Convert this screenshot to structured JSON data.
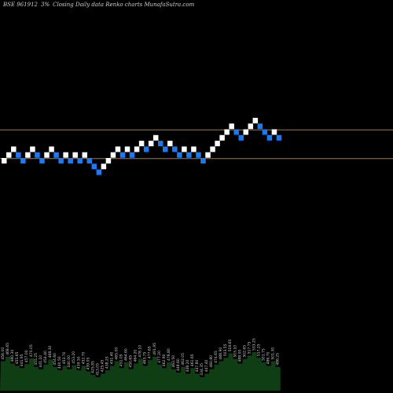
{
  "header": {
    "symbol": "BSE 961912",
    "box": "3%",
    "caption": "Closing Daily data Renko charts MunafaSutra.com"
  },
  "colors": {
    "up": "#ffffff",
    "down": "#1e78f0",
    "reference_line": "#b8742a",
    "volume": "#0f3d14",
    "background": "#000000"
  },
  "chart_data": {
    "type": "renko",
    "box_size_percent": 3,
    "reference_lines": [
      {
        "level": 5
      },
      {
        "level": 0
      }
    ],
    "bricks": [
      {
        "level": -1,
        "dir": "up"
      },
      {
        "level": 0,
        "dir": "up"
      },
      {
        "level": 1,
        "dir": "up"
      },
      {
        "level": 0,
        "dir": "down"
      },
      {
        "level": -1,
        "dir": "down"
      },
      {
        "level": 0,
        "dir": "up"
      },
      {
        "level": 1,
        "dir": "up"
      },
      {
        "level": 0,
        "dir": "down"
      },
      {
        "level": -1,
        "dir": "down"
      },
      {
        "level": 0,
        "dir": "up"
      },
      {
        "level": 1,
        "dir": "up"
      },
      {
        "level": 0,
        "dir": "down"
      },
      {
        "level": -1,
        "dir": "down"
      },
      {
        "level": 0,
        "dir": "up"
      },
      {
        "level": -1,
        "dir": "down"
      },
      {
        "level": 0,
        "dir": "up"
      },
      {
        "level": -1,
        "dir": "down"
      },
      {
        "level": 0,
        "dir": "up"
      },
      {
        "level": -1,
        "dir": "down"
      },
      {
        "level": -2,
        "dir": "down"
      },
      {
        "level": -3,
        "dir": "down"
      },
      {
        "level": -2,
        "dir": "up"
      },
      {
        "level": -1,
        "dir": "up"
      },
      {
        "level": 0,
        "dir": "up"
      },
      {
        "level": 1,
        "dir": "up"
      },
      {
        "level": 0,
        "dir": "down"
      },
      {
        "level": 1,
        "dir": "up"
      },
      {
        "level": 0,
        "dir": "down"
      },
      {
        "level": 1,
        "dir": "up"
      },
      {
        "level": 2,
        "dir": "up"
      },
      {
        "level": 1,
        "dir": "down"
      },
      {
        "level": 2,
        "dir": "up"
      },
      {
        "level": 3,
        "dir": "up"
      },
      {
        "level": 2,
        "dir": "down"
      },
      {
        "level": 1,
        "dir": "down"
      },
      {
        "level": 2,
        "dir": "up"
      },
      {
        "level": 1,
        "dir": "down"
      },
      {
        "level": 0,
        "dir": "down"
      },
      {
        "level": 1,
        "dir": "up"
      },
      {
        "level": 0,
        "dir": "down"
      },
      {
        "level": 1,
        "dir": "up"
      },
      {
        "level": 0,
        "dir": "down"
      },
      {
        "level": -1,
        "dir": "down"
      },
      {
        "level": 0,
        "dir": "up"
      },
      {
        "level": 1,
        "dir": "up"
      },
      {
        "level": 2,
        "dir": "up"
      },
      {
        "level": 3,
        "dir": "up"
      },
      {
        "level": 4,
        "dir": "up"
      },
      {
        "level": 5,
        "dir": "up"
      },
      {
        "level": 4,
        "dir": "down"
      },
      {
        "level": 3,
        "dir": "down"
      },
      {
        "level": 4,
        "dir": "up"
      },
      {
        "level": 5,
        "dir": "up"
      },
      {
        "level": 6,
        "dir": "up"
      },
      {
        "level": 5,
        "dir": "down"
      },
      {
        "level": 4,
        "dir": "down"
      },
      {
        "level": 3,
        "dir": "down"
      },
      {
        "level": 4,
        "dir": "up"
      },
      {
        "level": 3,
        "dir": "down"
      }
    ],
    "volume": [
      {
        "v": 52,
        "label": "456.00"
      },
      {
        "v": 60,
        "label": "468.65"
      },
      {
        "v": 48,
        "label": "480.30"
      },
      {
        "v": 44,
        "label": "455.65"
      },
      {
        "v": 40,
        "label": "441.95"
      },
      {
        "v": 47,
        "label": "457.00"
      },
      {
        "v": 57,
        "label": "470.05"
      },
      {
        "v": 42,
        "label": "455.25"
      },
      {
        "v": 38,
        "label": "441.10"
      },
      {
        "v": 46,
        "label": "454.40"
      },
      {
        "v": 55,
        "label": "468.30"
      },
      {
        "v": 42,
        "label": "454.60"
      },
      {
        "v": 36,
        "label": "440.50"
      },
      {
        "v": 44,
        "label": "453.70"
      },
      {
        "v": 38,
        "label": "440.00"
      },
      {
        "v": 45,
        "label": "453.20"
      },
      {
        "v": 36,
        "label": "439.50"
      },
      {
        "v": 44,
        "label": "452.70"
      },
      {
        "v": 34,
        "label": "439.05"
      },
      {
        "v": 28,
        "label": "425.85"
      },
      {
        "v": 24,
        "label": "413.05"
      },
      {
        "v": 30,
        "label": "425.45"
      },
      {
        "v": 36,
        "label": "438.25"
      },
      {
        "v": 44,
        "label": "451.40"
      },
      {
        "v": 52,
        "label": "465.00"
      },
      {
        "v": 40,
        "label": "451.05"
      },
      {
        "v": 50,
        "label": "464.60"
      },
      {
        "v": 38,
        "label": "450.65"
      },
      {
        "v": 48,
        "label": "464.20"
      },
      {
        "v": 56,
        "label": "478.10"
      },
      {
        "v": 44,
        "label": "463.75"
      },
      {
        "v": 54,
        "label": "477.65"
      },
      {
        "v": 60,
        "label": "491.95"
      },
      {
        "v": 46,
        "label": "477.20"
      },
      {
        "v": 40,
        "label": "462.90"
      },
      {
        "v": 50,
        "label": "476.80"
      },
      {
        "v": 38,
        "label": "462.50"
      },
      {
        "v": 32,
        "label": "448.60"
      },
      {
        "v": 42,
        "label": "462.05"
      },
      {
        "v": 30,
        "label": "448.20"
      },
      {
        "v": 40,
        "label": "461.65"
      },
      {
        "v": 30,
        "label": "447.80"
      },
      {
        "v": 24,
        "label": "434.35"
      },
      {
        "v": 30,
        "label": "447.40"
      },
      {
        "v": 38,
        "label": "460.80"
      },
      {
        "v": 46,
        "label": "474.65"
      },
      {
        "v": 52,
        "label": "488.90"
      },
      {
        "v": 58,
        "label": "503.55"
      },
      {
        "v": 66,
        "label": "518.65"
      },
      {
        "v": 56,
        "label": "503.10"
      },
      {
        "v": 48,
        "label": "488.00"
      },
      {
        "v": 56,
        "label": "502.65"
      },
      {
        "v": 62,
        "label": "517.75"
      },
      {
        "v": 68,
        "label": "533.25"
      },
      {
        "v": 58,
        "label": "517.25"
      },
      {
        "v": 50,
        "label": "501.75"
      },
      {
        "v": 44,
        "label": "486.70"
      },
      {
        "v": 52,
        "label": "501.30"
      },
      {
        "v": 42,
        "label": "486.25"
      }
    ]
  }
}
